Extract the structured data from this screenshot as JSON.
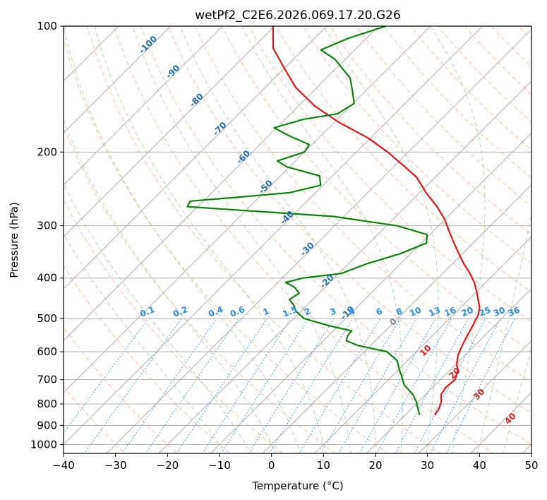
{
  "chart_data": {
    "type": "line",
    "title": "wetPf2_C2E6.2026.069.17.20.G26",
    "xlabel": "Temperature (°C)",
    "ylabel": "Pressure (hPa)",
    "xlim": [
      -40,
      50
    ],
    "ylim": [
      1050,
      100
    ],
    "x_ticks": [
      -40,
      -30,
      -20,
      -10,
      0,
      10,
      20,
      30,
      40,
      50
    ],
    "y_ticks": [
      1000,
      900,
      800,
      700,
      600,
      500,
      400,
      300,
      200,
      100
    ],
    "grid": true,
    "skew": 35,
    "series": [
      {
        "name": "temperature",
        "color": "#e8141a",
        "points": [
          [
            25.7,
            850
          ],
          [
            25.3,
            820
          ],
          [
            24.4,
            790
          ],
          [
            23.0,
            760
          ],
          [
            22.5,
            730
          ],
          [
            22.8,
            700
          ],
          [
            21.8,
            670
          ],
          [
            20.0,
            640
          ],
          [
            18.6,
            610
          ],
          [
            17.6,
            580
          ],
          [
            16.7,
            550
          ],
          [
            15.8,
            520
          ],
          [
            14.8,
            490
          ],
          [
            13.6,
            470
          ],
          [
            11.8,
            450
          ],
          [
            9.9,
            430
          ],
          [
            7.8,
            410
          ],
          [
            5.2,
            390
          ],
          [
            2.2,
            370
          ],
          [
            -0.7,
            350
          ],
          [
            -3.7,
            330
          ],
          [
            -6.8,
            310
          ],
          [
            -10.0,
            290
          ],
          [
            -14.0,
            270
          ],
          [
            -18.8,
            250
          ],
          [
            -23.5,
            230
          ],
          [
            -28.5,
            215
          ],
          [
            -34.0,
            200
          ],
          [
            -40.5,
            185
          ],
          [
            -49.0,
            170
          ],
          [
            -57.0,
            155
          ],
          [
            -64.2,
            140
          ],
          [
            -70.5,
            125
          ],
          [
            -76.0,
            113
          ],
          [
            -80.3,
            100
          ]
        ]
      },
      {
        "name": "dewpoint",
        "color": "#108010",
        "points": [
          [
            22.8,
            850
          ],
          [
            21.2,
            820
          ],
          [
            19.6,
            790
          ],
          [
            17.6,
            760
          ],
          [
            14.0,
            720
          ],
          [
            12.1,
            690
          ],
          [
            10.0,
            660
          ],
          [
            8.0,
            630
          ],
          [
            4.3,
            600
          ],
          [
            -2.4,
            580
          ],
          [
            -5.6,
            565
          ],
          [
            -6.3,
            550
          ],
          [
            -6.5,
            535
          ],
          [
            -11.8,
            520
          ],
          [
            -18.0,
            500
          ],
          [
            -21.0,
            480
          ],
          [
            -22.5,
            465
          ],
          [
            -24.5,
            450
          ],
          [
            -23.8,
            435
          ],
          [
            -26.0,
            420
          ],
          [
            -28.5,
            410
          ],
          [
            -26.0,
            400
          ],
          [
            -19.5,
            390
          ],
          [
            -16.5,
            370
          ],
          [
            -12.0,
            350
          ],
          [
            -9.0,
            330
          ],
          [
            -10.5,
            315
          ],
          [
            -18.0,
            300
          ],
          [
            -32.0,
            285
          ],
          [
            -52.0,
            275
          ],
          [
            -62.0,
            270
          ],
          [
            -62.5,
            262
          ],
          [
            -55.0,
            257
          ],
          [
            -45.0,
            250
          ],
          [
            -40.5,
            240
          ],
          [
            -42.5,
            228
          ],
          [
            -50.5,
            217
          ],
          [
            -53.5,
            210
          ],
          [
            -50.0,
            200
          ],
          [
            -50.5,
            192
          ],
          [
            -56.0,
            183
          ],
          [
            -60.5,
            175
          ],
          [
            -56.5,
            167
          ],
          [
            -51.0,
            162
          ],
          [
            -49.8,
            153
          ],
          [
            -52.5,
            143
          ],
          [
            -55.5,
            133
          ],
          [
            -62.0,
            120
          ],
          [
            -66.5,
            114
          ],
          [
            -63.5,
            107
          ],
          [
            -58.6,
            100
          ]
        ]
      }
    ],
    "background_lines": {
      "dry_adiabats_theta_c": [
        -30,
        -20,
        -10,
        0,
        10,
        20,
        30,
        40,
        50,
        60,
        70,
        80,
        90,
        100,
        110,
        120,
        130,
        140,
        150,
        160,
        170,
        180,
        190,
        200,
        210
      ],
      "moist_adiabats_theta_c": [
        -10,
        -5,
        0,
        5,
        10,
        15,
        20,
        25,
        30,
        35,
        40,
        45
      ],
      "mixing_ratio_gkg": [
        0.1,
        0.2,
        0.4,
        0.6,
        1,
        1.5,
        2,
        3,
        4,
        6,
        8,
        10,
        13,
        16,
        20,
        25,
        30,
        36
      ]
    },
    "annotations": {
      "dry_temp_labels": [
        "-100",
        "-90",
        "-80",
        "-70",
        "-60",
        "-50",
        "-40",
        "-30",
        "-20",
        "-10"
      ],
      "mixing_labels": [
        "0.1",
        "0.2",
        "0.4",
        "0.6",
        "1",
        "1.5",
        "2",
        "3",
        "4",
        "6",
        "8",
        "10",
        "13",
        "16",
        "20",
        "25",
        "30",
        "36"
      ],
      "moist_labels": [
        "0",
        "10",
        "20",
        "30",
        "40"
      ]
    }
  }
}
